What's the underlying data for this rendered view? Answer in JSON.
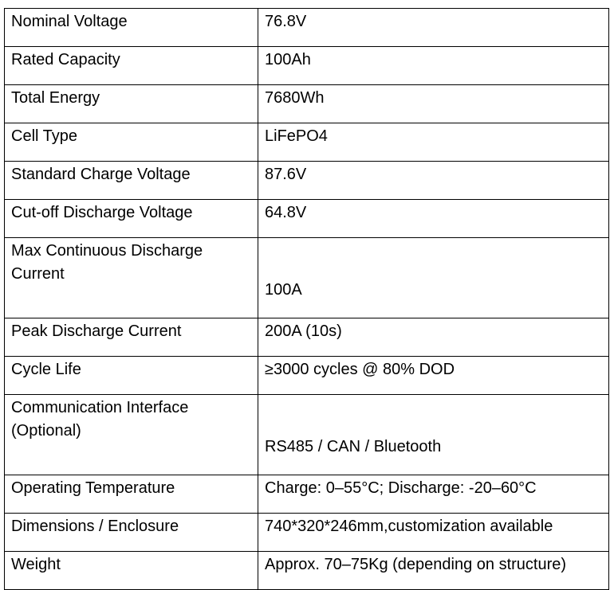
{
  "spec_table": {
    "rows": [
      {
        "label": "Nominal Voltage",
        "value": "76.8V"
      },
      {
        "label": "Rated Capacity",
        "value": "100Ah"
      },
      {
        "label": "Total Energy",
        "value": "7680Wh"
      },
      {
        "label": "Cell Type",
        "value": "LiFePO4"
      },
      {
        "label": "Standard Charge Voltage",
        "value": "87.6V"
      },
      {
        "label": "Cut-off Discharge Voltage",
        "value": "64.8V"
      },
      {
        "label": "Max Continuous Discharge Current",
        "value": "100A"
      },
      {
        "label": "Peak Discharge Current",
        "value": "200A (10s)"
      },
      {
        "label": "Cycle Life",
        "value": "≥3000 cycles @ 80% DOD"
      },
      {
        "label": "Communication Interface (Optional)",
        "value": "RS485 / CAN / Bluetooth"
      },
      {
        "label": "Operating Temperature",
        "value": "Charge: 0–55°C; Discharge: -20–60°C"
      },
      {
        "label": "Dimensions / Enclosure",
        "value": "740*320*246mm,customization available"
      },
      {
        "label": "Weight",
        "value": "Approx. 70–75Kg (depending on structure)"
      }
    ]
  }
}
